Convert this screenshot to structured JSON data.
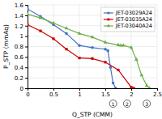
{
  "chart_data": {
    "type": "line",
    "xlabel": "Q_STP (CMM)",
    "ylabel": "P_STP (mmAq)",
    "series": [
      {
        "name": "JET-03029A24",
        "color": "#4472C4",
        "marker": "circle",
        "x": [
          0.0,
          0.25,
          0.5,
          0.75,
          1.0,
          1.25,
          1.5,
          1.55,
          1.6,
          1.65,
          1.7
        ],
        "values": [
          1.52,
          1.38,
          1.22,
          1.05,
          0.82,
          0.78,
          0.75,
          0.72,
          0.4,
          0.1,
          0.0
        ]
      },
      {
        "name": "JET-03035A24",
        "color": "#CC0000",
        "marker": "square",
        "x": [
          0.0,
          0.25,
          0.5,
          0.75,
          1.0,
          1.25,
          1.5,
          1.75,
          2.0,
          2.05
        ],
        "values": [
          1.22,
          1.1,
          0.95,
          0.75,
          0.58,
          0.57,
          0.5,
          0.35,
          0.02,
          0.0
        ]
      },
      {
        "name": "JET-03040A24",
        "color": "#70AD47",
        "marker": "triangle",
        "x": [
          0.0,
          0.25,
          0.5,
          0.75,
          1.0,
          1.25,
          1.5,
          1.75,
          1.8,
          1.85,
          2.0,
          2.1,
          2.2,
          2.3,
          2.35
        ],
        "values": [
          1.42,
          1.35,
          1.25,
          1.15,
          1.05,
          0.98,
          0.88,
          0.83,
          0.82,
          0.82,
          0.78,
          0.55,
          0.25,
          0.05,
          0.0
        ]
      }
    ],
    "annotations": [
      {
        "x": 1.65,
        "text": "1"
      },
      {
        "x": 1.92,
        "text": "2"
      },
      {
        "x": 2.3,
        "text": "3"
      }
    ],
    "xlim": [
      0.0,
      2.5
    ],
    "ylim": [
      0.0,
      1.6
    ],
    "xticks": [
      0.0,
      0.5,
      1.0,
      1.5,
      2.0,
      2.5
    ],
    "yticks": [
      0.0,
      0.2,
      0.4,
      0.6,
      0.8,
      1.0,
      1.2,
      1.4,
      1.6
    ],
    "grid": true,
    "legend": "upper right"
  }
}
